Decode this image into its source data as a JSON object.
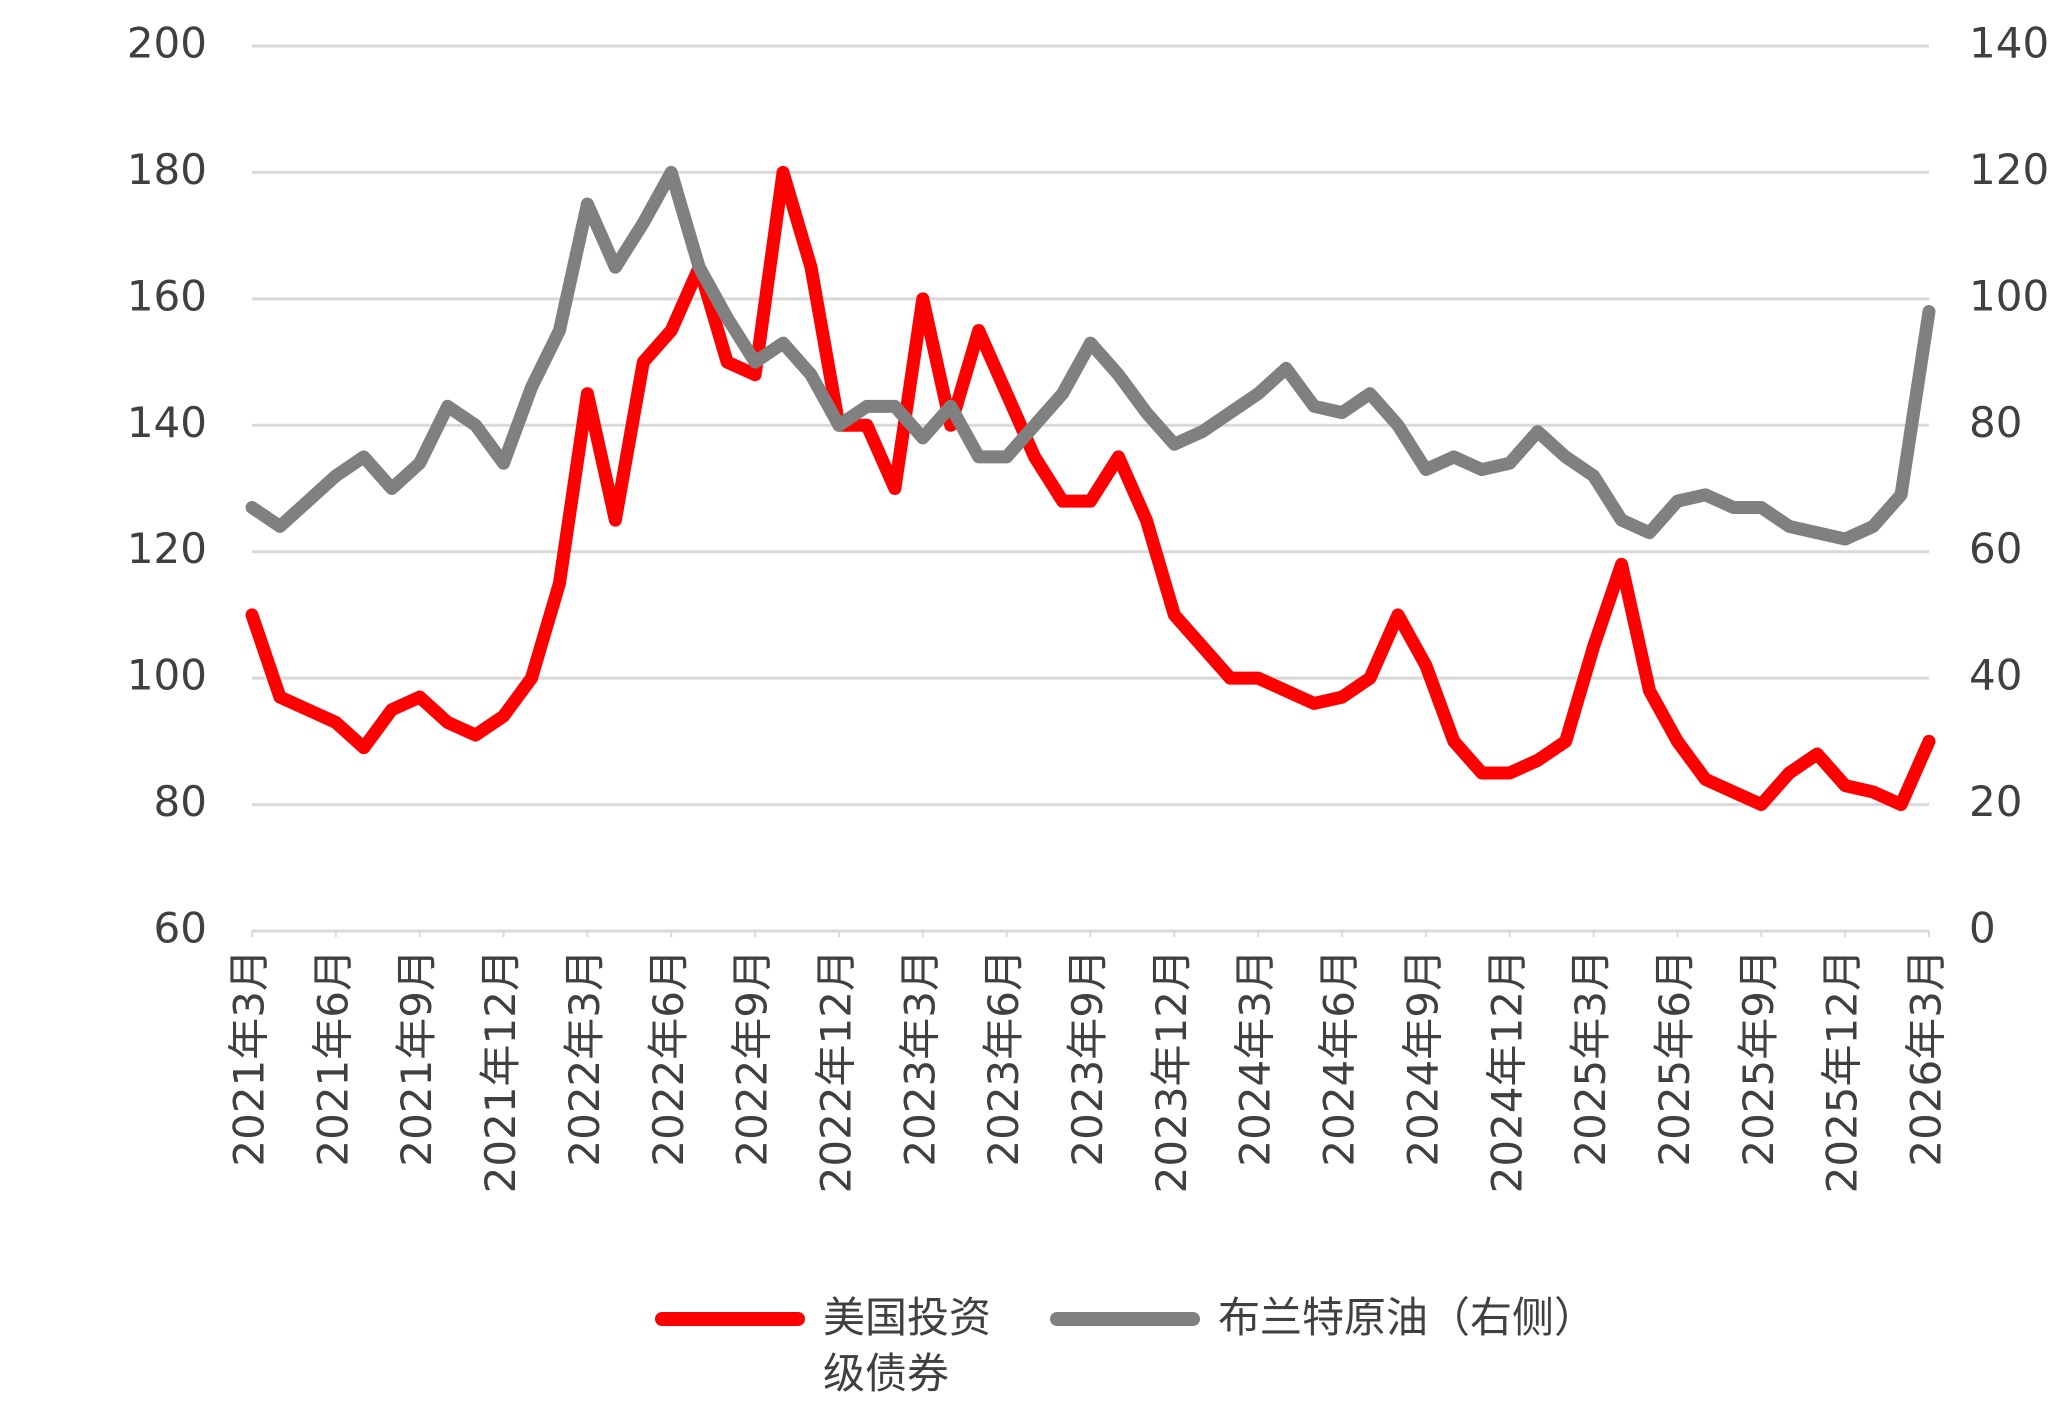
{
  "chart_data": {
    "type": "line",
    "x": [
      "2021-03",
      "2021-04",
      "2021-05",
      "2021-06",
      "2021-07",
      "2021-08",
      "2021-09",
      "2021-10",
      "2021-11",
      "2021-12",
      "2022-01",
      "2022-02",
      "2022-03",
      "2022-04",
      "2022-05",
      "2022-06",
      "2022-07",
      "2022-08",
      "2022-09",
      "2022-10",
      "2022-11",
      "2022-12",
      "2023-01",
      "2023-02",
      "2023-03",
      "2023-04",
      "2023-05",
      "2023-06",
      "2023-07",
      "2023-08",
      "2023-09",
      "2023-10",
      "2023-11",
      "2023-12",
      "2024-01",
      "2024-02",
      "2024-03",
      "2024-04",
      "2024-05",
      "2024-06",
      "2024-07",
      "2024-08",
      "2024-09",
      "2024-10",
      "2024-11",
      "2024-12",
      "2025-01",
      "2025-02",
      "2025-03",
      "2025-04",
      "2025-05",
      "2025-06",
      "2025-07",
      "2025-08",
      "2025-09",
      "2025-10",
      "2025-11",
      "2025-12",
      "2026-01",
      "2026-02",
      "2026-03"
    ],
    "xlim": [
      "2021-03",
      "2026-03"
    ],
    "xticks": [
      {
        "value": "2021-03",
        "label": "2021年3月"
      },
      {
        "value": "2021-06",
        "label": "2021年6月"
      },
      {
        "value": "2021-09",
        "label": "2021年9月"
      },
      {
        "value": "2021-12",
        "label": "2021年12月"
      },
      {
        "value": "2022-03",
        "label": "2022年3月"
      },
      {
        "value": "2022-06",
        "label": "2022年6月"
      },
      {
        "value": "2022-09",
        "label": "2022年9月"
      },
      {
        "value": "2022-12",
        "label": "2022年12月"
      },
      {
        "value": "2023-03",
        "label": "2023年3月"
      },
      {
        "value": "2023-06",
        "label": "2023年6月"
      },
      {
        "value": "2023-09",
        "label": "2023年9月"
      },
      {
        "value": "2023-12",
        "label": "2023年12月"
      },
      {
        "value": "2024-03",
        "label": "2024年3月"
      },
      {
        "value": "2024-06",
        "label": "2024年6月"
      },
      {
        "value": "2024-09",
        "label": "2024年9月"
      },
      {
        "value": "2024-12",
        "label": "2024年12月"
      },
      {
        "value": "2025-03",
        "label": "2025年3月"
      },
      {
        "value": "2025-06",
        "label": "2025年6月"
      },
      {
        "value": "2025-09",
        "label": "2025年9月"
      },
      {
        "value": "2025-12",
        "label": "2025年12月"
      },
      {
        "value": "2026-03",
        "label": "2026年3月"
      }
    ],
    "ylim": [
      60,
      200
    ],
    "yticks": [
      60,
      80,
      100,
      120,
      140,
      160,
      180,
      200
    ],
    "y2lim": [
      0,
      140
    ],
    "y2ticks": [
      0,
      20,
      40,
      60,
      80,
      100,
      120,
      140
    ],
    "grid": true,
    "series": [
      {
        "name": "美国投资级债券",
        "color": "#ff0000",
        "values": [
          110,
          97,
          95,
          93,
          89,
          95,
          97,
          93,
          91,
          94,
          100,
          115,
          145,
          125,
          150,
          155,
          165,
          150,
          148,
          180,
          165,
          140,
          140,
          130,
          160,
          140,
          155,
          145,
          135,
          128,
          128,
          135,
          125,
          110,
          105,
          100,
          100,
          98,
          96,
          97,
          100,
          110,
          102,
          90,
          85,
          85,
          87,
          90,
          105,
          118,
          98,
          90,
          84,
          82,
          80,
          85,
          88,
          83,
          82,
          80,
          90
        ]
      },
      {
        "name": "布兰特原油（右侧）",
        "color": "#808080",
        "axis": "y2",
        "values": [
          67,
          64,
          68,
          72,
          75,
          70,
          74,
          83,
          80,
          74,
          86,
          95,
          115,
          105,
          112,
          120,
          105,
          97,
          90,
          93,
          88,
          80,
          83,
          83,
          78,
          83,
          75,
          75,
          80,
          85,
          93,
          88,
          82,
          77,
          79,
          82,
          85,
          89,
          83,
          82,
          85,
          80,
          73,
          75,
          73,
          74,
          79,
          75,
          72,
          65,
          63,
          68,
          69,
          67,
          67,
          64,
          63,
          62,
          64,
          69,
          98
        ]
      }
    ]
  }
}
